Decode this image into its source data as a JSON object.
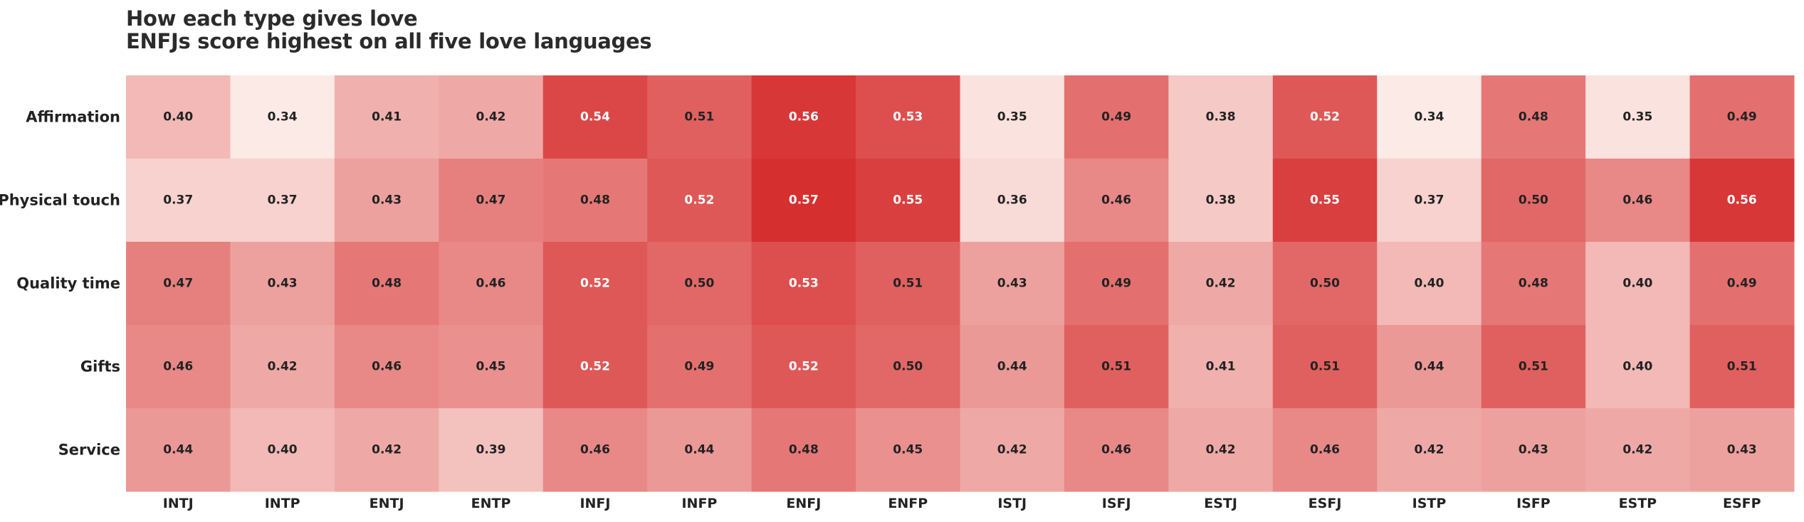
{
  "chart_data": {
    "type": "heatmap",
    "title": "How each type gives love",
    "subtitle": "ENFJs score highest on all five love languages",
    "rows": [
      "Affirmation",
      "Physical touch",
      "Quality time",
      "Gifts",
      "Service"
    ],
    "columns": [
      "INTJ",
      "INTP",
      "ENTJ",
      "ENTP",
      "INFJ",
      "INFP",
      "ENFJ",
      "ENFP",
      "ISTJ",
      "ISFJ",
      "ESTJ",
      "ESFJ",
      "ISTP",
      "ISFP",
      "ESTP",
      "ESFP"
    ],
    "values": [
      [
        0.4,
        0.34,
        0.41,
        0.42,
        0.54,
        0.51,
        0.56,
        0.53,
        0.35,
        0.49,
        0.38,
        0.52,
        0.34,
        0.48,
        0.35,
        0.49
      ],
      [
        0.37,
        0.37,
        0.43,
        0.47,
        0.48,
        0.52,
        0.57,
        0.55,
        0.36,
        0.46,
        0.38,
        0.55,
        0.37,
        0.5,
        0.46,
        0.56
      ],
      [
        0.47,
        0.43,
        0.48,
        0.46,
        0.52,
        0.5,
        0.53,
        0.51,
        0.43,
        0.49,
        0.42,
        0.5,
        0.4,
        0.48,
        0.4,
        0.49
      ],
      [
        0.46,
        0.42,
        0.46,
        0.45,
        0.52,
        0.49,
        0.52,
        0.5,
        0.44,
        0.51,
        0.41,
        0.51,
        0.44,
        0.51,
        0.4,
        0.51
      ],
      [
        0.44,
        0.4,
        0.42,
        0.39,
        0.46,
        0.44,
        0.48,
        0.45,
        0.42,
        0.46,
        0.42,
        0.46,
        0.42,
        0.43,
        0.42,
        0.43
      ]
    ],
    "color_scale": {
      "low": "#fdf2ee",
      "high": "#d62f2f",
      "domain": [
        0.33,
        0.57
      ]
    },
    "text_color_dark": "#222222",
    "text_color_light": "#ffffff",
    "light_text_threshold": 0.52
  }
}
